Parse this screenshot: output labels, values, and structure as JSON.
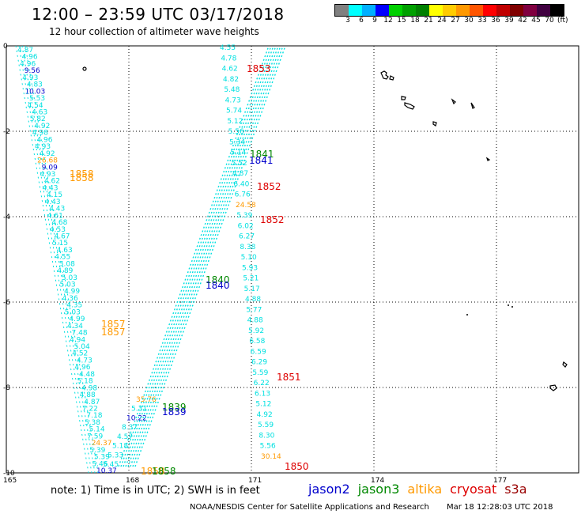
{
  "title": "12:00 – 23:59 UTC 03/17/2018",
  "subtitle": "12 hour collection of altimeter wave heights",
  "colorbar": {
    "colors": [
      "#808080",
      "#00ffff",
      "#00b0ff",
      "#0000ff",
      "#00d000",
      "#00a000",
      "#008000",
      "#ffff00",
      "#ffcc00",
      "#ff9900",
      "#ff5500",
      "#ff0000",
      "#c00000",
      "#800000",
      "#800040",
      "#400040",
      "#000000"
    ],
    "labels": [
      "3",
      "6",
      "9",
      "12",
      "15",
      "18",
      "21",
      "24",
      "27",
      "30",
      "33",
      "36",
      "39",
      "42",
      "45",
      "70"
    ],
    "unit": "(ft)"
  },
  "axes": {
    "y_ticks": [
      "0",
      "-2",
      "-4",
      "-6",
      "-8",
      "-10"
    ],
    "x_ticks": [
      "165",
      "168",
      "171",
      "174",
      "177"
    ]
  },
  "note": "note: 1) Time is in UTC; 2) SWH is in feet",
  "legend": [
    {
      "name": "jason2",
      "color": "#0000cc"
    },
    {
      "name": "jason3",
      "color": "#008800"
    },
    {
      "name": "altika",
      "color": "#ff9900"
    },
    {
      "name": "cryosat",
      "color": "#dd0000"
    },
    {
      "name": "s3a",
      "color": "#990000"
    }
  ],
  "credit": "NOAA/NESDIS Center for Satellite Applications and Research",
  "timestamp": "Mar 18 12:28:03 UTC 2018",
  "track_colors": {
    "swh": "#00e0e0",
    "jason2": "#0000cc",
    "jason3": "#008800",
    "altika": "#ff9900",
    "cryosat": "#dd0000"
  },
  "pass_times": [
    {
      "text": "1853",
      "sat": "cryosat"
    },
    {
      "text": "1841",
      "sat": "jason3"
    },
    {
      "text": "1841",
      "sat": "jason2"
    },
    {
      "text": "1852",
      "sat": "cryosat"
    },
    {
      "text": "1852",
      "sat": "cryosat"
    },
    {
      "text": "1858",
      "sat": "altika"
    },
    {
      "text": "1858",
      "sat": "altika"
    },
    {
      "text": "1840",
      "sat": "jason3"
    },
    {
      "text": "1840",
      "sat": "jason2"
    },
    {
      "text": "1857",
      "sat": "altika"
    },
    {
      "text": "1857",
      "sat": "altika"
    },
    {
      "text": "1851",
      "sat": "cryosat"
    },
    {
      "text": "1839",
      "sat": "jason3"
    },
    {
      "text": "1839",
      "sat": "jason2"
    },
    {
      "text": "1850",
      "sat": "cryosat"
    },
    {
      "text": "1858",
      "sat": "altika"
    },
    {
      "text": "1858",
      "sat": "jason3"
    }
  ],
  "track_left_values": [
    "4.87",
    "4.96",
    "4.96",
    "9.56",
    "4.93",
    "4.83",
    "10.03",
    "5.53",
    "4.54",
    "4.63",
    "5.82",
    "4.92",
    "4.98",
    "4.96",
    "4.93",
    "4.92",
    "26.68",
    "9.09",
    "4.93",
    "4.62",
    "4.43",
    "4.15",
    "4.43",
    "4.43",
    "4.61",
    "4.68",
    "4.53",
    "4.67",
    "5.15",
    "4.63",
    "4.55",
    "5.08",
    "4.89",
    "5.03",
    "5.03",
    "4.99",
    "4.36",
    "4.35",
    "5.03",
    "4.99",
    "4.34",
    "7.48",
    "4.94",
    "5.04",
    "4.52",
    "4.73",
    "4.96",
    "4.48",
    "5.18",
    "4.98",
    "4.88",
    "4.87",
    "7.22",
    "7.18",
    "5.38",
    "5.14",
    "7.59",
    "24.37",
    "5.39",
    "5.39",
    "5.46",
    "10.37"
  ],
  "track_right_values": [
    "4.55",
    "4.78",
    "4.62",
    "4.82",
    "5.48",
    "4.73",
    "5.74",
    "5.12",
    "5.56",
    "5.34",
    "5.14",
    "5.52",
    "4.87",
    "6.40",
    "6.76",
    "24.58",
    "5.39",
    "6.02",
    "6.27",
    "8.38",
    "5.10",
    "5.93",
    "5.21",
    "5.17",
    "4.88",
    "5.77",
    "4.88",
    "5.92",
    "6.58",
    "6.59",
    "6.29",
    "5.59",
    "6.22",
    "6.13",
    "5.12",
    "4.92",
    "5.59",
    "8.30",
    "5.56",
    "30.14"
  ],
  "track_diag_values": [
    "35.76",
    "5.31",
    "10.22",
    "8.37",
    "4.57",
    "5.18",
    "5.33",
    "5.45"
  ]
}
